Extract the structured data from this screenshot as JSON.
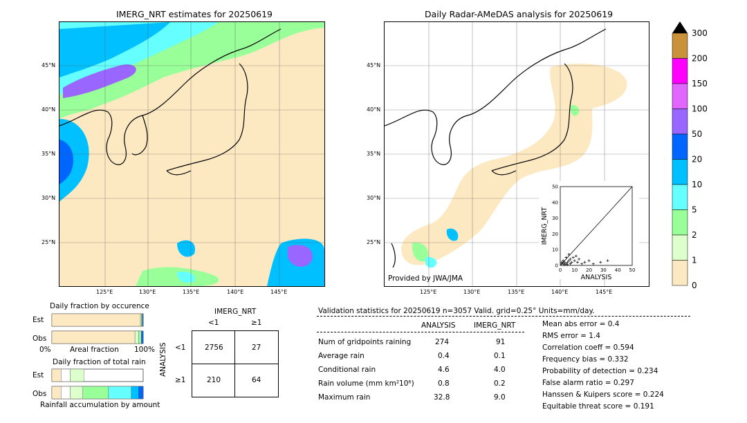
{
  "left_map": {
    "title": "IMERG_NRT estimates for 20250619",
    "lat_labels": [
      "45°N",
      "40°N",
      "35°N",
      "30°N",
      "25°N"
    ],
    "lon_labels": [
      "125°E",
      "130°E",
      "135°E",
      "140°E",
      "145°E"
    ]
  },
  "right_map": {
    "title": "Daily Radar-AMeDAS analysis for 20250619",
    "lat_labels": [
      "45°N",
      "40°N",
      "35°N",
      "30°N",
      "25°N"
    ],
    "lon_labels": [
      "125°E",
      "130°E",
      "135°E",
      "140°E",
      "145°E"
    ],
    "provider": "Provided by JWA/JMA"
  },
  "colorbar": {
    "labels": [
      "300",
      "200",
      "150",
      "100",
      "50",
      "20",
      "10",
      "5",
      "2",
      "1",
      "0"
    ],
    "colors": [
      "#c8913a",
      "#ff00ff",
      "#e066ff",
      "#9966ff",
      "#0066ff",
      "#00c0ff",
      "#66ffff",
      "#99ff99",
      "#ddffcc",
      "#fde9c1"
    ]
  },
  "occurrence": {
    "title": "Daily fraction by occurence",
    "est_label": "Est",
    "obs_label": "Obs",
    "axis_left": "0%",
    "axis_mid": "Areal fraction",
    "axis_right": "100%"
  },
  "total_rain": {
    "title": "Daily fraction of total rain",
    "est_label": "Est",
    "obs_label": "Obs",
    "axis_label": "Rainfall accumulation by amount"
  },
  "contingency": {
    "col_header": "IMERG_NRT",
    "col_lt": "<1",
    "col_ge": "≥1",
    "row_header": "ANALYSIS",
    "row_lt": "<1",
    "row_ge": "≥1",
    "cells": [
      "2756",
      "27",
      "210",
      "64"
    ]
  },
  "validation": {
    "header": "Validation statistics for 20250619  n=3057 Valid. grid=0.25° Units=mm/day.",
    "col_analysis": "ANALYSIS",
    "col_imerg": "IMERG_NRT",
    "rows": [
      {
        "label": "Num of gridpoints raining",
        "analysis": "274",
        "imerg": "91"
      },
      {
        "label": "Average rain",
        "analysis": "0.4",
        "imerg": "0.1"
      },
      {
        "label": "Conditional rain",
        "analysis": "4.6",
        "imerg": "4.0"
      },
      {
        "label": "Rain volume (mm km²10⁶)",
        "analysis": "0.8",
        "imerg": "0.2"
      },
      {
        "label": "Maximum rain",
        "analysis": "32.8",
        "imerg": "9.0"
      }
    ],
    "scores": [
      "Mean abs error =    0.4",
      "RMS error =    1.4",
      "Correlation coeff =  0.594",
      "Frequency bias =  0.332",
      "Probability of detection =  0.234",
      "False alarm ratio =  0.297",
      "Hanssen & Kuipers score =  0.224",
      "Equitable threat score =  0.191"
    ]
  },
  "chart_data": [
    {
      "type": "scatter",
      "title": "",
      "xlabel": "ANALYSIS",
      "ylabel": "IMERG_NRT",
      "xlim": [
        0,
        50
      ],
      "ylim": [
        0,
        50
      ],
      "ticks": [
        "0",
        "10",
        "20",
        "30",
        "40",
        "50"
      ],
      "points": [
        [
          1,
          1
        ],
        [
          2,
          1
        ],
        [
          3,
          2
        ],
        [
          4,
          1
        ],
        [
          5,
          2
        ],
        [
          6,
          3
        ],
        [
          7,
          4
        ],
        [
          8,
          2
        ],
        [
          9,
          5
        ],
        [
          10,
          3
        ],
        [
          11,
          6
        ],
        [
          12,
          2
        ],
        [
          13,
          4
        ],
        [
          15,
          1
        ],
        [
          17,
          2
        ],
        [
          20,
          3
        ],
        [
          23,
          1
        ],
        [
          28,
          2
        ],
        [
          33,
          3
        ],
        [
          2,
          3
        ],
        [
          4,
          5
        ],
        [
          6,
          7
        ],
        [
          3,
          0.5
        ],
        [
          1,
          2
        ],
        [
          5,
          0.5
        ],
        [
          7,
          1
        ]
      ]
    },
    {
      "type": "bar",
      "title": "Daily fraction by occurence",
      "categories": [
        "Est",
        "Obs"
      ],
      "series": [
        {
          "name": "",
          "values": [
            0.97,
            0.91
          ]
        },
        {
          "name": "",
          "values": [
            0.01,
            0.04
          ]
        },
        {
          "name": "",
          "values": [
            0.01,
            0.03
          ]
        },
        {
          "name": "",
          "values": [
            0.01,
            0.02
          ]
        }
      ]
    },
    {
      "type": "bar",
      "title": "Daily fraction of total rain",
      "categories": [
        "Est",
        "Obs"
      ],
      "series": [
        {
          "name": "",
          "values": [
            0.1,
            0.1
          ]
        },
        {
          "name": "",
          "values": [
            0.1,
            0.1
          ]
        },
        {
          "name": "",
          "values": [
            0.15,
            0.14
          ]
        },
        {
          "name": "",
          "values": [
            0.0,
            0.28
          ]
        },
        {
          "name": "",
          "values": [
            0.0,
            0.25
          ]
        },
        {
          "name": "",
          "values": [
            0.0,
            0.08
          ]
        },
        {
          "name": "",
          "values": [
            0.0,
            0.05
          ]
        }
      ]
    }
  ]
}
